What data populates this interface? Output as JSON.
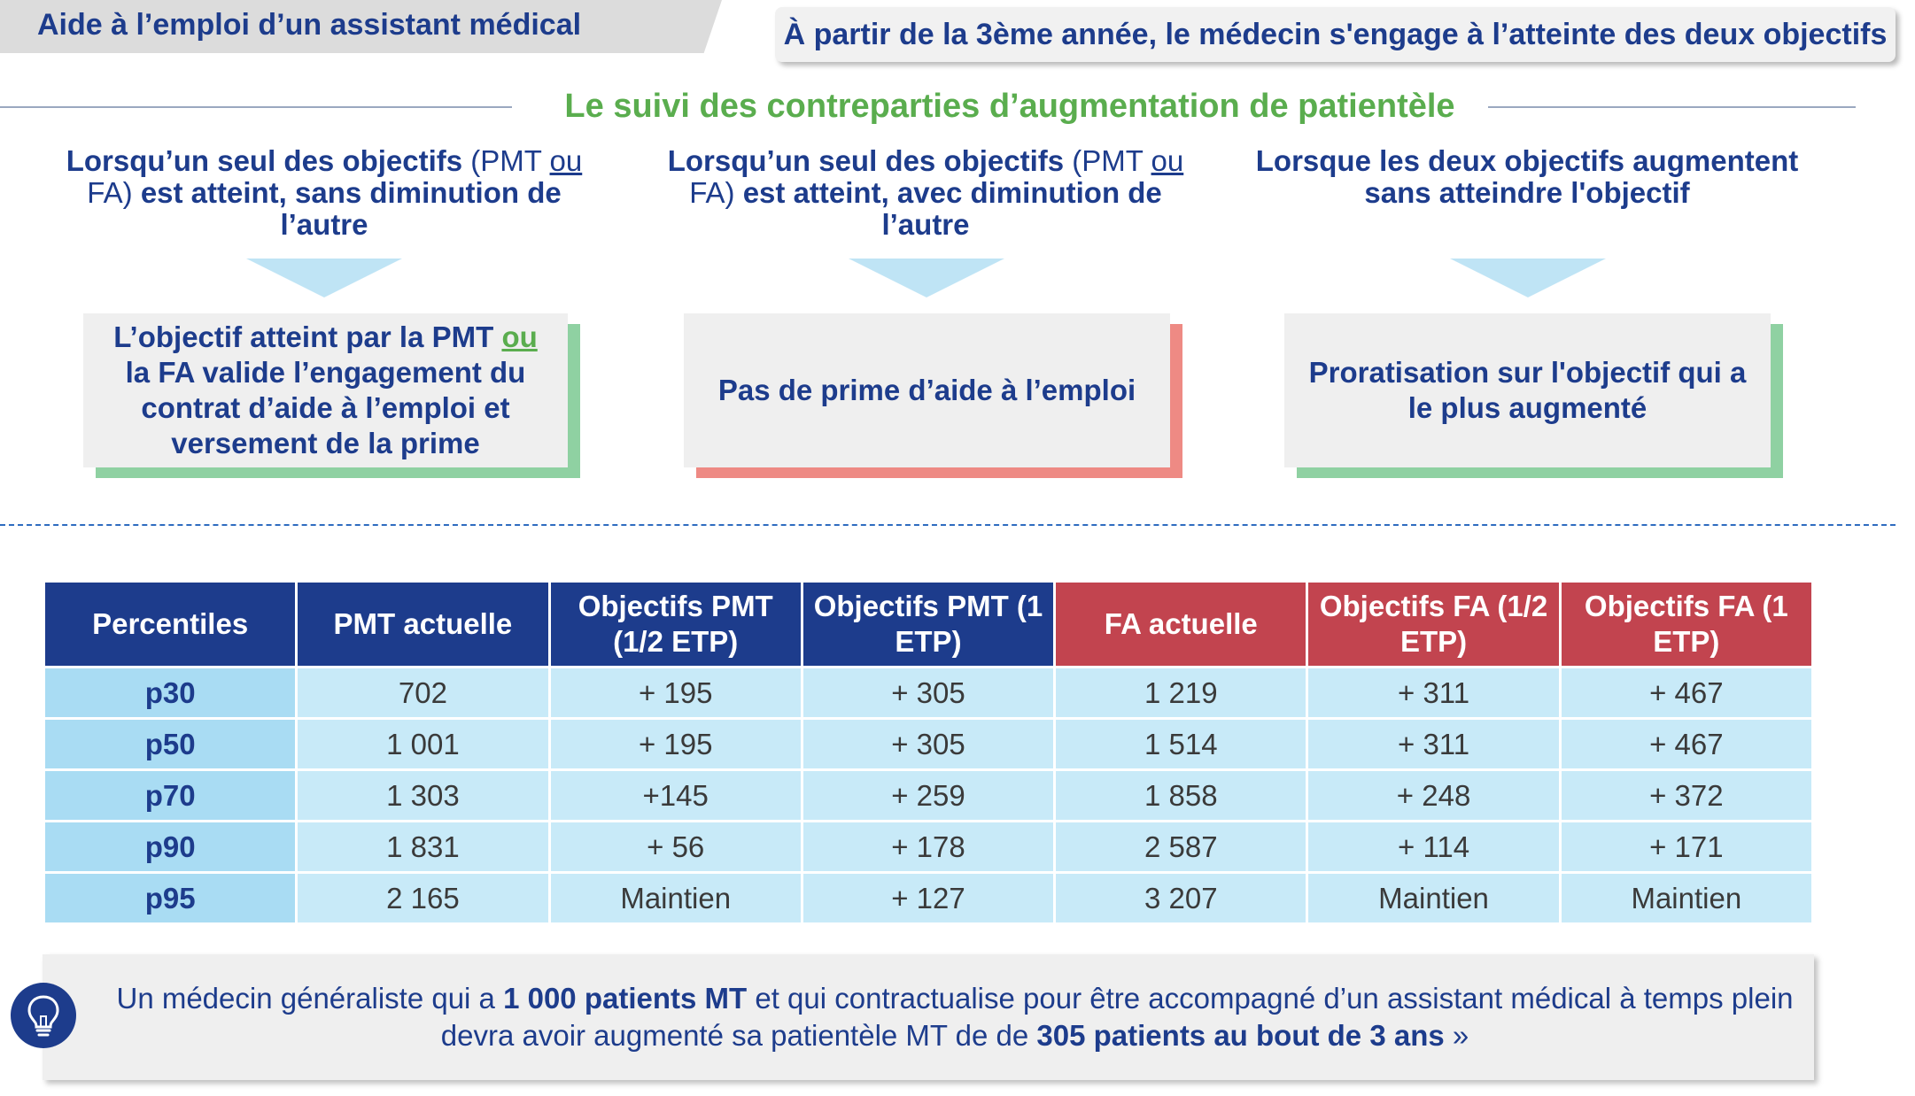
{
  "header": {
    "tab_label": "Aide à l’emploi d’un assistant médical",
    "banner": "À partir de la 3ème année, le médecin s'engage à l’atteinte des deux objectifs"
  },
  "section_title": "Le suivi des contreparties d’augmentation de patientèle",
  "columns": [
    {
      "case_1": "Lorsqu’un seul des objectifs",
      "case_2": " (PMT ",
      "case_3": "ou",
      "case_4": " FA) ",
      "case_5": "est atteint, sans diminution de l’autre",
      "result_1": "L’objectif atteint par la PMT ",
      "result_2": "ou",
      "result_3": " la FA valide l’engagement du contrat d’aide à l’emploi et versement de la prime",
      "accent": "#8fd1a2"
    },
    {
      "case_1": "Lorsqu’un seul des objectifs",
      "case_2": " (PMT ",
      "case_3": "ou",
      "case_4": " FA) ",
      "case_5": "est atteint, avec diminution de l’autre",
      "result": "Pas de prime d’aide à l’emploi",
      "accent": "#ee8a84"
    },
    {
      "case": "Lorsque les deux objectifs augmentent sans atteindre l'objectif",
      "result": "Proratisation sur l'objectif qui a le plus augmenté",
      "accent": "#8fd1a2"
    }
  ],
  "table": {
    "headers": [
      {
        "label": "Percentiles",
        "color": "#1d3c8c"
      },
      {
        "label": "PMT actuelle",
        "color": "#1d3c8c"
      },
      {
        "label": "Objectifs PMT (1/2 ETP)",
        "color": "#1d3c8c"
      },
      {
        "label": "Objectifs PMT (1 ETP)",
        "color": "#1d3c8c"
      },
      {
        "label": "FA actuelle",
        "color": "#c2444f"
      },
      {
        "label": "Objectifs FA (1/2 ETP)",
        "color": "#c2444f"
      },
      {
        "label": "Objectifs FA (1 ETP)",
        "color": "#c2444f"
      }
    ],
    "rows": [
      [
        "p30",
        "702",
        "+ 195",
        "+ 305",
        "1 219",
        "+ 311",
        "+ 467"
      ],
      [
        "p50",
        "1 001",
        "+ 195",
        "+ 305",
        "1 514",
        "+ 311",
        "+ 467"
      ],
      [
        "p70",
        "1 303",
        "+145",
        "+ 259",
        "1 858",
        "+ 248",
        "+ 372"
      ],
      [
        "p90",
        "1 831",
        "+ 56",
        "+ 178",
        "2 587",
        "+ 114",
        "+ 171"
      ],
      [
        "p95",
        "2 165",
        "Maintien",
        "+ 127",
        "3 207",
        "Maintien",
        "Maintien"
      ]
    ]
  },
  "note": {
    "icon": "lightbulb-icon",
    "part1": "Un médecin généraliste qui a ",
    "part2": "1 000 patients MT",
    "part3": " et qui contractualise pour être accompagné d’un assistant médical à temps plein devra avoir augmenté sa patientèle MT de de ",
    "part4": "305 patients au bout de 3 ans",
    "part5": " »"
  }
}
